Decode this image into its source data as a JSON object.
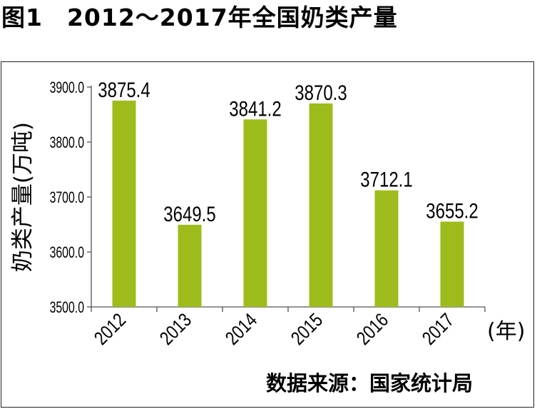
{
  "figure": {
    "title": "图1　2012～2017年全国奶类产量",
    "source": "数据来源：国家统计局"
  },
  "chart_data": {
    "type": "bar",
    "title": "图1　2012～2017年全国奶类产量",
    "categories": [
      "2012",
      "2013",
      "2014",
      "2015",
      "2016",
      "2017"
    ],
    "values": [
      3875.4,
      3649.5,
      3841.2,
      3870.3,
      3712.1,
      3655.2
    ],
    "value_labels": [
      "3875.4",
      "3649.5",
      "3841.2",
      "3870.3",
      "3712.1",
      "3655.2"
    ],
    "ylabel": "奶类产量(万吨)",
    "xlabel": "(年)",
    "ylim": [
      3500,
      3900
    ],
    "yticks": [
      3500,
      3600,
      3700,
      3800,
      3900
    ],
    "ytick_labels": [
      "3500.0",
      "3600.0",
      "3700.0",
      "3800.0",
      "3900.0"
    ],
    "grid": false,
    "legend": "none",
    "bar_color": "#9dbc1c"
  }
}
